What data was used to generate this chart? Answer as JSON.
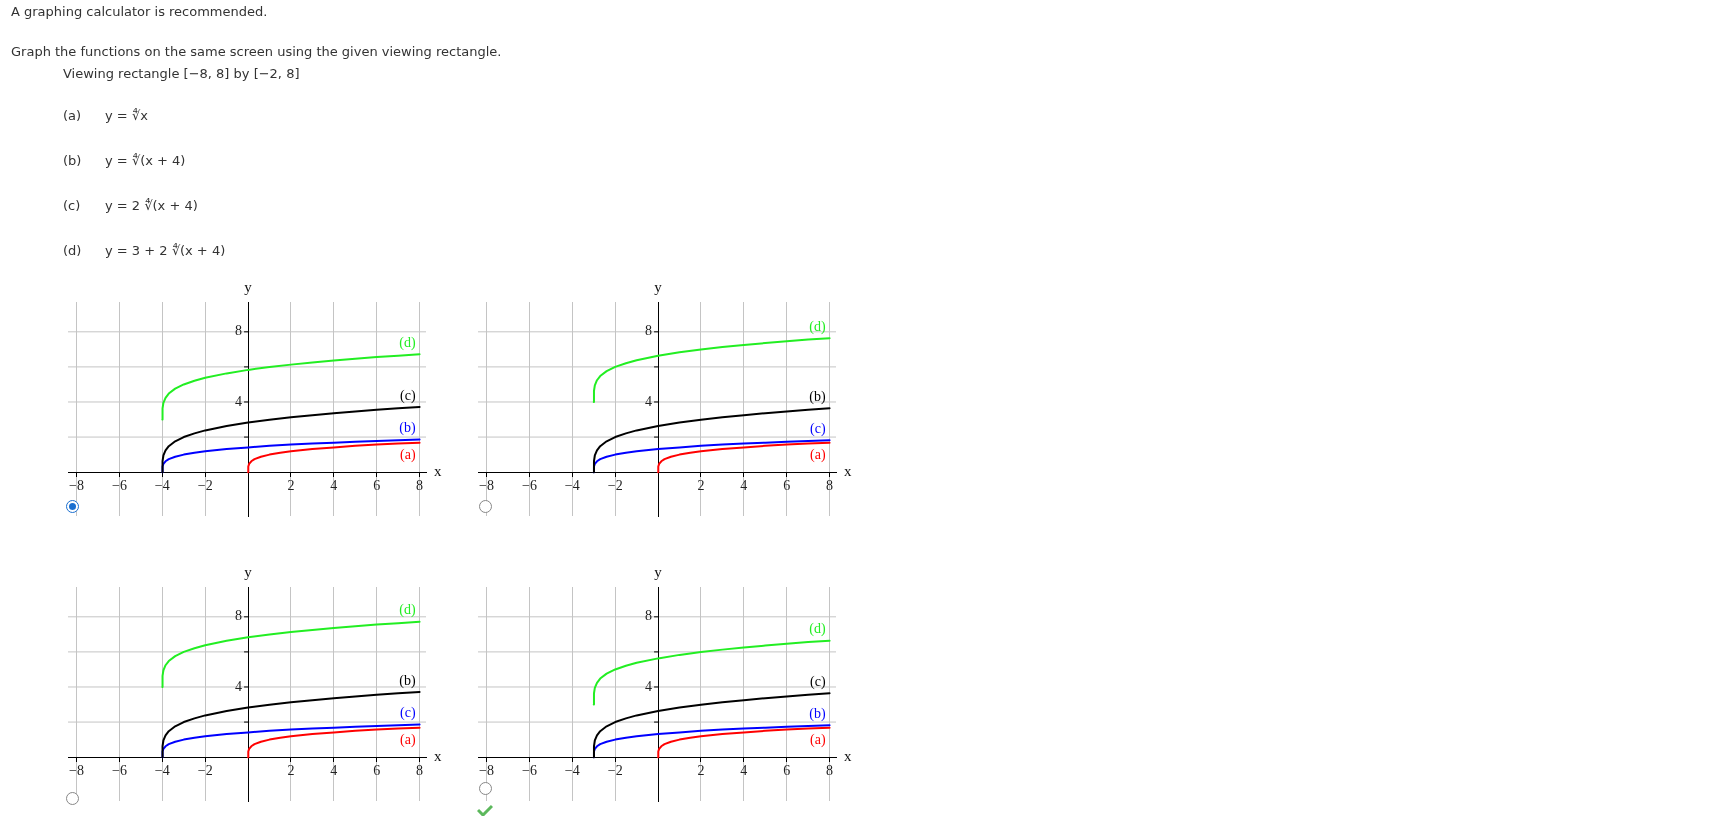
{
  "chart_data": [
    {
      "type": "other",
      "title": "A graphing calculator is recommended.",
      "annotations": [
        "Graph the functions on the same screen using the given viewing rectangle.",
        "Viewing rectangle [−8, 8] by [−2, 8]",
        "(a)",
        "y = ∜x",
        "(b)",
        "y = ∜(x + 4)",
        "(c)",
        "y = 2 ∜(x + 4)",
        "(d)",
        "y = 3 + 2 ∜(x + 4)"
      ]
    },
    {
      "type": "line",
      "xlabel": "x",
      "ylabel": "y",
      "xlim": [
        -8.4,
        8.3
      ],
      "ylim": [
        -2.5,
        9.7
      ],
      "xticks": [
        {
          "value": -8,
          "label": "−8"
        },
        {
          "value": -6,
          "label": "−6"
        },
        {
          "value": -4,
          "label": "−4"
        },
        {
          "value": -2,
          "label": "−2"
        },
        2,
        4,
        6,
        8
      ],
      "yticks": [
        {
          "value": 2,
          "label": null
        },
        {
          "value": 4,
          "label": "4"
        },
        {
          "value": 6,
          "label": null
        },
        {
          "value": 8,
          "label": "8"
        }
      ],
      "grid": true,
      "marker": "none",
      "series": [
        {
          "name": "(d)",
          "color": "#22ee22",
          "x": [
            -4,
            -3.99,
            -3.95,
            -3.85,
            -3.7,
            -3.4,
            -3,
            -2.5,
            -2,
            -1,
            0,
            1,
            2,
            3,
            4,
            5,
            6,
            7,
            8
          ],
          "values": [
            3,
            3.63,
            3.95,
            4.24,
            4.48,
            4.76,
            5,
            5.21,
            5.38,
            5.63,
            5.83,
            5.99,
            6.13,
            6.25,
            6.36,
            6.46,
            6.56,
            6.64,
            6.72
          ]
        },
        {
          "name": "(c)",
          "color": "#000000",
          "x": [
            -4,
            -3.99,
            -3.95,
            -3.85,
            -3.7,
            -3.4,
            -3,
            -2.5,
            -2,
            -1,
            0,
            1,
            2,
            3,
            4,
            5,
            6,
            7,
            8
          ],
          "values": [
            0,
            0.63,
            0.95,
            1.24,
            1.48,
            1.76,
            2,
            2.21,
            2.38,
            2.63,
            2.83,
            2.99,
            3.13,
            3.25,
            3.36,
            3.46,
            3.56,
            3.64,
            3.72
          ]
        },
        {
          "name": "(b)",
          "color": "#0000ff",
          "x": [
            -4,
            -3.99,
            -3.95,
            -3.85,
            -3.7,
            -3.4,
            -3,
            -2.5,
            -2,
            -1,
            0,
            1,
            2,
            3,
            4,
            5,
            6,
            7,
            8
          ],
          "values": [
            0,
            0.32,
            0.47,
            0.62,
            0.74,
            0.88,
            1,
            1.11,
            1.19,
            1.32,
            1.41,
            1.5,
            1.57,
            1.63,
            1.68,
            1.73,
            1.78,
            1.82,
            1.86
          ]
        },
        {
          "name": "(a)",
          "color": "#ff0000",
          "x": [
            0,
            0.01,
            0.05,
            0.15,
            0.3,
            0.6,
            1,
            1.5,
            2,
            3,
            4,
            5,
            6,
            7,
            8
          ],
          "values": [
            0,
            0.32,
            0.47,
            0.62,
            0.74,
            0.88,
            1,
            1.11,
            1.19,
            1.32,
            1.41,
            1.5,
            1.57,
            1.63,
            1.68
          ]
        }
      ]
    },
    {
      "type": "line",
      "xlabel": "x",
      "ylabel": "y",
      "xlim": [
        -8.4,
        8.3
      ],
      "ylim": [
        -2.5,
        9.7
      ],
      "xticks": [
        {
          "value": -8,
          "label": "−8"
        },
        {
          "value": -6,
          "label": "−6"
        },
        {
          "value": -4,
          "label": "−4"
        },
        {
          "value": -2,
          "label": "−2"
        },
        2,
        4,
        6,
        8
      ],
      "yticks": [
        {
          "value": 2,
          "label": null
        },
        {
          "value": 4,
          "label": "4"
        },
        {
          "value": 6,
          "label": null
        },
        {
          "value": 8,
          "label": "8"
        }
      ],
      "grid": true,
      "marker": "none",
      "series": [
        {
          "name": "(d)",
          "color": "#22ee22",
          "x": [
            -3,
            -2.99,
            -2.95,
            -2.85,
            -2.7,
            -2.4,
            -2,
            -1.5,
            -1,
            0,
            1,
            2,
            3,
            4,
            5,
            6,
            7,
            8
          ],
          "values": [
            4,
            4.63,
            4.95,
            5.24,
            5.48,
            5.76,
            6,
            6.21,
            6.38,
            6.63,
            6.83,
            6.99,
            7.13,
            7.25,
            7.36,
            7.46,
            7.56,
            7.64
          ]
        },
        {
          "name": "(b)",
          "color": "#000000",
          "x": [
            -3,
            -2.99,
            -2.95,
            -2.85,
            -2.7,
            -2.4,
            -2,
            -1.5,
            -1,
            0,
            1,
            2,
            3,
            4,
            5,
            6,
            7,
            8
          ],
          "values": [
            0,
            0.63,
            0.95,
            1.24,
            1.48,
            1.76,
            2,
            2.21,
            2.38,
            2.63,
            2.83,
            2.99,
            3.13,
            3.25,
            3.36,
            3.46,
            3.56,
            3.64
          ]
        },
        {
          "name": "(c)",
          "color": "#0000ff",
          "x": [
            -3,
            -2.99,
            -2.95,
            -2.85,
            -2.7,
            -2.4,
            -2,
            -1.5,
            -1,
            0,
            1,
            2,
            3,
            4,
            5,
            6,
            7,
            8
          ],
          "values": [
            0,
            0.32,
            0.47,
            0.62,
            0.74,
            0.88,
            1,
            1.11,
            1.19,
            1.32,
            1.41,
            1.5,
            1.57,
            1.63,
            1.68,
            1.73,
            1.78,
            1.82
          ]
        },
        {
          "name": "(a)",
          "color": "#ff0000",
          "x": [
            0,
            0.01,
            0.05,
            0.15,
            0.3,
            0.6,
            1,
            1.5,
            2,
            3,
            4,
            5,
            6,
            7,
            8
          ],
          "values": [
            0,
            0.32,
            0.47,
            0.62,
            0.74,
            0.88,
            1,
            1.11,
            1.19,
            1.32,
            1.41,
            1.5,
            1.57,
            1.63,
            1.68
          ]
        }
      ]
    },
    {
      "type": "line",
      "xlabel": "x",
      "ylabel": "y",
      "xlim": [
        -8.4,
        8.3
      ],
      "ylim": [
        -2.5,
        9.7
      ],
      "xticks": [
        {
          "value": -8,
          "label": "−8"
        },
        {
          "value": -6,
          "label": "−6"
        },
        {
          "value": -4,
          "label": "−4"
        },
        {
          "value": -2,
          "label": "−2"
        },
        2,
        4,
        6,
        8
      ],
      "yticks": [
        {
          "value": 2,
          "label": null
        },
        {
          "value": 4,
          "label": "4"
        },
        {
          "value": 6,
          "label": null
        },
        {
          "value": 8,
          "label": "8"
        }
      ],
      "grid": true,
      "marker": "none",
      "series": [
        {
          "name": "(d)",
          "color": "#22ee22",
          "x": [
            -4,
            -3.99,
            -3.95,
            -3.85,
            -3.7,
            -3.4,
            -3,
            -2.5,
            -2,
            -1,
            0,
            1,
            2,
            3,
            4,
            5,
            6,
            7,
            8
          ],
          "values": [
            4,
            4.63,
            4.95,
            5.24,
            5.48,
            5.76,
            6,
            6.21,
            6.38,
            6.63,
            6.83,
            6.99,
            7.13,
            7.25,
            7.36,
            7.46,
            7.56,
            7.64,
            7.72
          ]
        },
        {
          "name": "(b)",
          "color": "#000000",
          "x": [
            -4,
            -3.99,
            -3.95,
            -3.85,
            -3.7,
            -3.4,
            -3,
            -2.5,
            -2,
            -1,
            0,
            1,
            2,
            3,
            4,
            5,
            6,
            7,
            8
          ],
          "values": [
            0,
            0.63,
            0.95,
            1.24,
            1.48,
            1.76,
            2,
            2.21,
            2.38,
            2.63,
            2.83,
            2.99,
            3.13,
            3.25,
            3.36,
            3.46,
            3.56,
            3.64,
            3.72
          ]
        },
        {
          "name": "(c)",
          "color": "#0000ff",
          "x": [
            -4,
            -3.99,
            -3.95,
            -3.85,
            -3.7,
            -3.4,
            -3,
            -2.5,
            -2,
            -1,
            0,
            1,
            2,
            3,
            4,
            5,
            6,
            7,
            8
          ],
          "values": [
            0,
            0.32,
            0.47,
            0.62,
            0.74,
            0.88,
            1,
            1.11,
            1.19,
            1.32,
            1.41,
            1.5,
            1.57,
            1.63,
            1.68,
            1.73,
            1.78,
            1.82,
            1.86
          ]
        },
        {
          "name": "(a)",
          "color": "#ff0000",
          "x": [
            0,
            0.01,
            0.05,
            0.15,
            0.3,
            0.6,
            1,
            1.5,
            2,
            3,
            4,
            5,
            6,
            7,
            8
          ],
          "values": [
            0,
            0.32,
            0.47,
            0.62,
            0.74,
            0.88,
            1,
            1.11,
            1.19,
            1.32,
            1.41,
            1.5,
            1.57,
            1.63,
            1.68
          ]
        }
      ]
    },
    {
      "type": "line",
      "xlabel": "x",
      "ylabel": "y",
      "xlim": [
        -8.4,
        8.3
      ],
      "ylim": [
        -2.5,
        9.7
      ],
      "xticks": [
        {
          "value": -8,
          "label": "−8"
        },
        {
          "value": -6,
          "label": "−6"
        },
        {
          "value": -4,
          "label": "−4"
        },
        {
          "value": -2,
          "label": "−2"
        },
        2,
        4,
        6,
        8
      ],
      "yticks": [
        {
          "value": 2,
          "label": null
        },
        {
          "value": 4,
          "label": "4"
        },
        {
          "value": 6,
          "label": null
        },
        {
          "value": 8,
          "label": "8"
        }
      ],
      "grid": true,
      "marker": "none",
      "series": [
        {
          "name": "(d)",
          "color": "#22ee22",
          "x": [
            -3,
            -2.99,
            -2.95,
            -2.85,
            -2.7,
            -2.4,
            -2,
            -1.5,
            -1,
            0,
            1,
            2,
            3,
            4,
            5,
            6,
            7,
            8
          ],
          "values": [
            3,
            3.63,
            3.95,
            4.24,
            4.48,
            4.76,
            5,
            5.21,
            5.38,
            5.63,
            5.83,
            5.99,
            6.13,
            6.25,
            6.36,
            6.46,
            6.56,
            6.64
          ]
        },
        {
          "name": "(c)",
          "color": "#000000",
          "x": [
            -3,
            -2.99,
            -2.95,
            -2.85,
            -2.7,
            -2.4,
            -2,
            -1.5,
            -1,
            0,
            1,
            2,
            3,
            4,
            5,
            6,
            7,
            8
          ],
          "values": [
            0,
            0.63,
            0.95,
            1.24,
            1.48,
            1.76,
            2,
            2.21,
            2.38,
            2.63,
            2.83,
            2.99,
            3.13,
            3.25,
            3.36,
            3.46,
            3.56,
            3.64
          ]
        },
        {
          "name": "(b)",
          "color": "#0000ff",
          "x": [
            -3,
            -2.99,
            -2.95,
            -2.85,
            -2.7,
            -2.4,
            -2,
            -1.5,
            -1,
            0,
            1,
            2,
            3,
            4,
            5,
            6,
            7,
            8
          ],
          "values": [
            0,
            0.32,
            0.47,
            0.62,
            0.74,
            0.88,
            1,
            1.11,
            1.19,
            1.32,
            1.41,
            1.5,
            1.57,
            1.63,
            1.68,
            1.73,
            1.78,
            1.82
          ]
        },
        {
          "name": "(a)",
          "color": "#ff0000",
          "x": [
            0,
            0.01,
            0.05,
            0.15,
            0.3,
            0.6,
            1,
            1.5,
            2,
            3,
            4,
            5,
            6,
            7,
            8
          ],
          "values": [
            0,
            0.32,
            0.47,
            0.62,
            0.74,
            0.88,
            1,
            1.11,
            1.19,
            1.32,
            1.41,
            1.5,
            1.57,
            1.63,
            1.68
          ]
        }
      ]
    }
  ]
}
